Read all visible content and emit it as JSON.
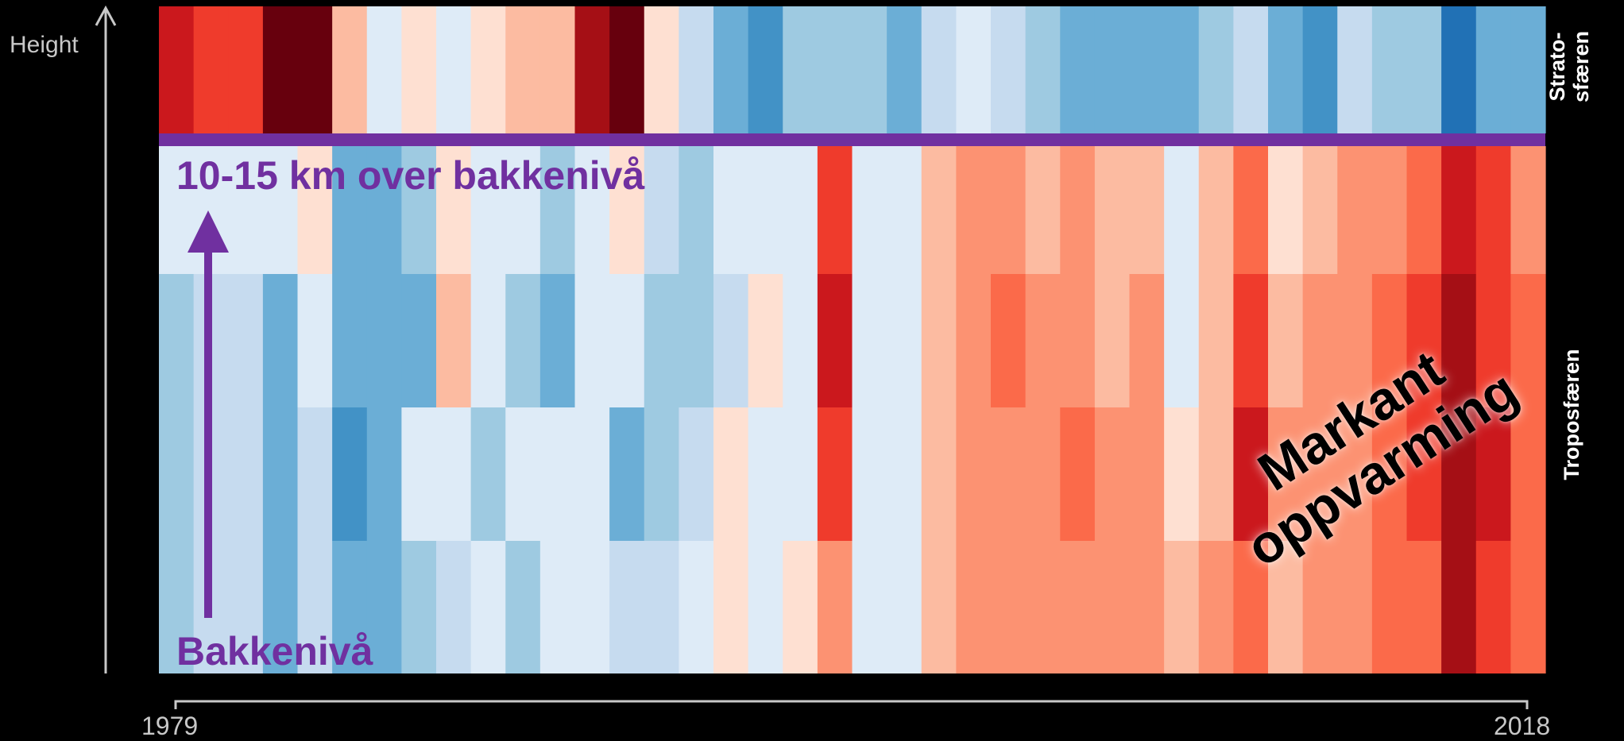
{
  "chart_data": {
    "type": "heatmap",
    "axis_label": "Height",
    "layers": {
      "stratosphere": "Strato-\nsfæren",
      "troposphere": "Troposfæren"
    },
    "annotations": {
      "tropopause_level": "10-15 km over bakkenivå",
      "ground_level": "Bakkenivå",
      "trend": "Markant\noppvarming"
    },
    "x_start_label": "1979",
    "x_end_label": "2018",
    "row_order": "top-to-bottom: stratosphere, upper troposphere ... ground level",
    "color_scale": {
      "unit": "temperature anomaly class (-4 coldest … +5 warmest)",
      "colors": {
        "-4": "#2171b5",
        "-3": "#4292c6",
        "-2": "#6baed6",
        "-1": "#9ecae1",
        "0": "#c6dbef",
        "1": "#deebf7",
        "2": "#fee0d2",
        "3": "#fcbba1",
        "4": "#fc9272",
        "5": "#fb6a4a",
        "6": "#ef3b2c",
        "7": "#cb181d",
        "8": "#a50f15",
        "9": "#67000d"
      }
    },
    "rows": [
      [
        7,
        6,
        6,
        9,
        9,
        3,
        1,
        2,
        1,
        2,
        3,
        3,
        8,
        9,
        2,
        0,
        -2,
        -3,
        -1,
        -1,
        -1,
        -2,
        0,
        1,
        0,
        -1,
        -2,
        -2,
        -2,
        -2,
        -1,
        0,
        -2,
        -3,
        0,
        -1,
        -1,
        -4,
        -2,
        -2
      ],
      [
        1,
        1,
        1,
        1,
        2,
        -2,
        -2,
        -1,
        2,
        1,
        1,
        -1,
        1,
        2,
        0,
        -1,
        1,
        1,
        1,
        6,
        1,
        1,
        3,
        4,
        4,
        3,
        4,
        3,
        3,
        1,
        3,
        5,
        2,
        3,
        4,
        4,
        5,
        7,
        6,
        4
      ],
      [
        -1,
        0,
        0,
        -2,
        1,
        -2,
        -2,
        -2,
        3,
        1,
        -1,
        -2,
        1,
        1,
        -1,
        -1,
        0,
        2,
        1,
        7,
        1,
        1,
        3,
        4,
        5,
        4,
        4,
        3,
        4,
        1,
        3,
        6,
        3,
        4,
        4,
        5,
        6,
        8,
        6,
        5
      ],
      [
        -1,
        0,
        0,
        -2,
        0,
        -3,
        -2,
        1,
        1,
        -1,
        1,
        1,
        1,
        -2,
        -1,
        0,
        2,
        1,
        1,
        6,
        1,
        1,
        3,
        4,
        4,
        4,
        5,
        4,
        4,
        2,
        3,
        7,
        4,
        4,
        4,
        5,
        6,
        8,
        7,
        5
      ],
      [
        -1,
        0,
        0,
        -2,
        0,
        -2,
        -2,
        -1,
        0,
        1,
        -1,
        1,
        1,
        0,
        0,
        1,
        2,
        1,
        2,
        4,
        1,
        1,
        3,
        4,
        4,
        4,
        4,
        4,
        4,
        3,
        4,
        5,
        3,
        4,
        4,
        5,
        5,
        8,
        6,
        5
      ]
    ]
  }
}
